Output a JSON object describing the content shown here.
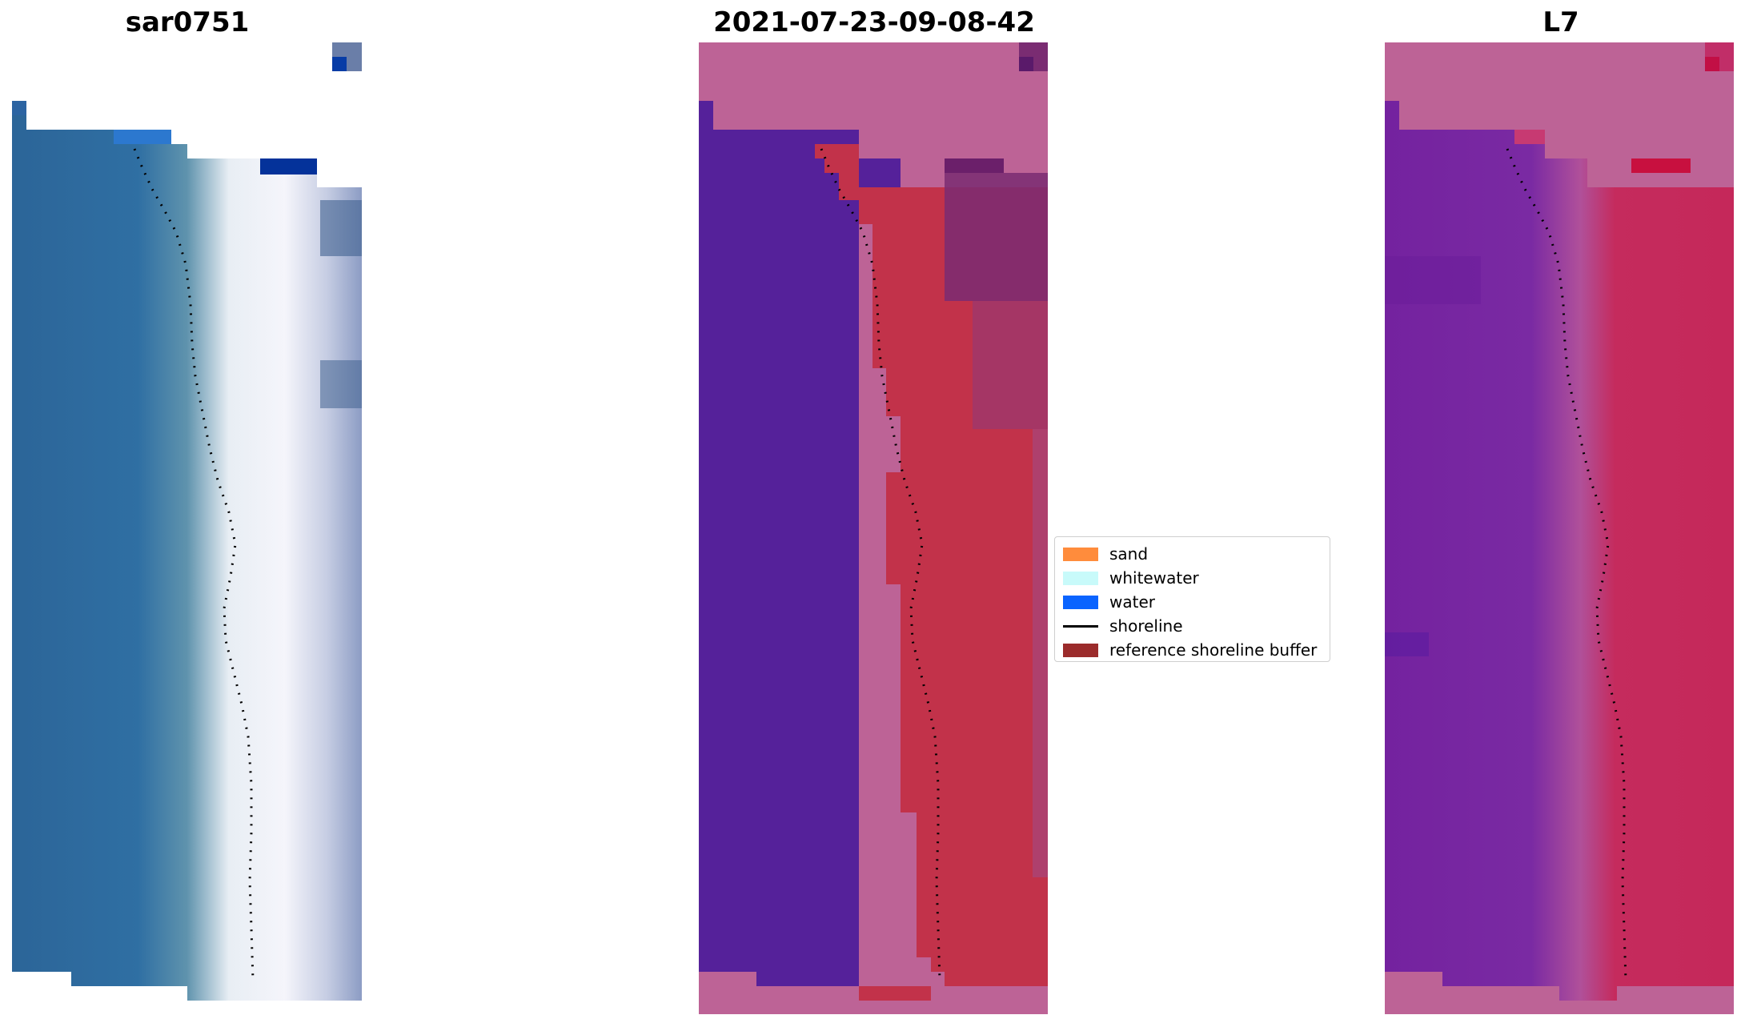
{
  "panels": [
    {
      "title": "sar0751"
    },
    {
      "title": "2021-07-23-09-08-42"
    },
    {
      "title": "L7"
    }
  ],
  "legend": {
    "items": [
      {
        "label": "sand",
        "color": "#ff8c3c",
        "kind": "patch"
      },
      {
        "label": "whitewater",
        "color": "#c8fafa",
        "kind": "patch"
      },
      {
        "label": "water",
        "color": "#0a64ff",
        "kind": "patch"
      },
      {
        "label": "shoreline",
        "color": "#000000",
        "kind": "line"
      },
      {
        "label": "reference shoreline buffer",
        "color": "#9b2b2b",
        "kind": "patch"
      }
    ]
  },
  "colors": {
    "nodata_pink": "#bd6396",
    "water_purple": "#55219a",
    "buffer_red": "#c2324a",
    "ocean_blue": "#2e6aa1",
    "surf_white": "#f0f2f8",
    "inland_slate": "#5e7fa8",
    "swir_purple": "#7526a3",
    "swir_red": "#c82a5c"
  }
}
